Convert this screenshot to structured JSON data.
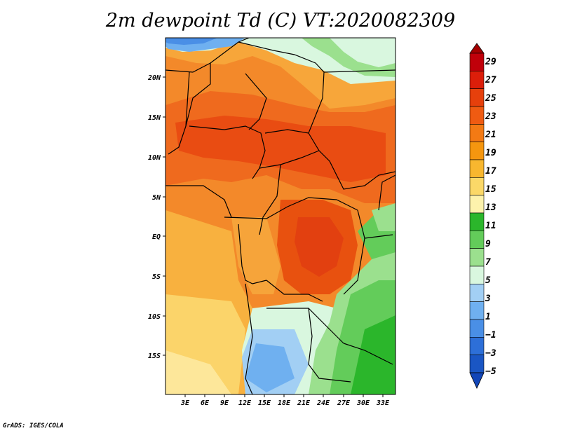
{
  "title": "2m dewpoint Td (C) VT:2020082309",
  "credit": "GrADS: IGES/COLA",
  "map": {
    "lat_labels": [
      "20N",
      "15N",
      "10N",
      "5N",
      "EQ",
      "5S",
      "10S",
      "15S"
    ],
    "lon_labels": [
      "3E",
      "6E",
      "9E",
      "12E",
      "15E",
      "18E",
      "21E",
      "24E",
      "27E",
      "30E",
      "33E"
    ]
  },
  "colorbar": {
    "levels": [
      "29",
      "27",
      "25",
      "23",
      "21",
      "19",
      "17",
      "15",
      "13",
      "11",
      "9",
      "7",
      "5",
      "3",
      "1",
      "−1",
      "−3",
      "−5"
    ],
    "colors": [
      "#c0000a",
      "#dc1e0a",
      "#e6400c",
      "#ef5b12",
      "#f37a14",
      "#f5960f",
      "#f8b72f",
      "#fbd868",
      "#fdf2ac",
      "#2bb62b",
      "#63cc5a",
      "#9be08e",
      "#d9f7df",
      "#a2cff4",
      "#6fb0f0",
      "#4a8fe6",
      "#2d6fd8",
      "#1a56c4"
    ],
    "top_color": "#a50000",
    "bottom_color": "#1246b8"
  }
}
